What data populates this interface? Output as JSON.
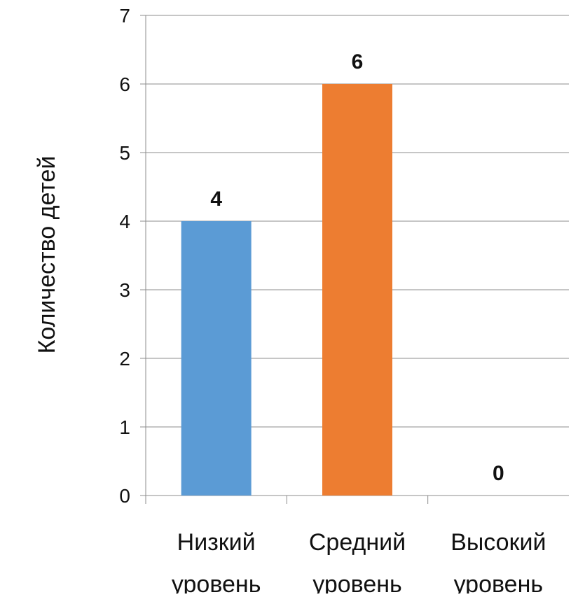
{
  "chart_data": {
    "type": "bar",
    "categories": [
      [
        "Низкий",
        "уровень"
      ],
      [
        "Средний",
        "уровень"
      ],
      [
        "Высокий",
        "уровень"
      ]
    ],
    "values": [
      4,
      6,
      0
    ],
    "data_labels": [
      "4",
      "6",
      "0"
    ],
    "bar_colors": [
      "#5b9bd5",
      "#ed7d31",
      "#a5a5a5"
    ],
    "title": "",
    "xlabel": "",
    "ylabel": "Количество детей",
    "ylim": [
      0,
      7
    ],
    "yticks": [
      0,
      1,
      2,
      3,
      4,
      5,
      6,
      7
    ],
    "grid": true,
    "legend": "none"
  }
}
